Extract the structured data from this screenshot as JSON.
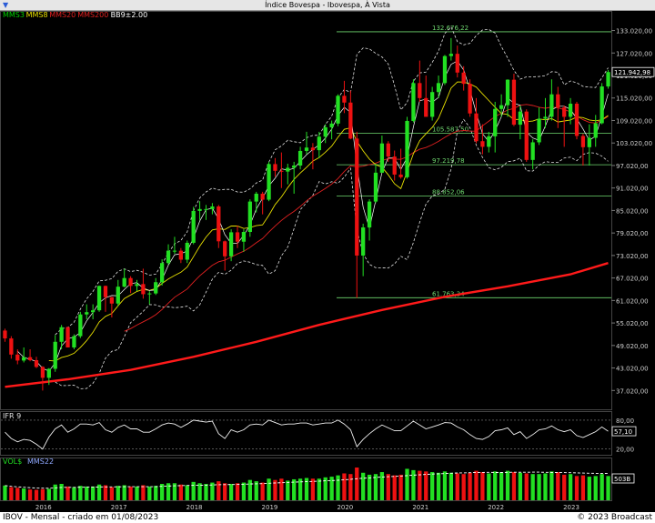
{
  "window": {
    "title": "Índice Bovespa - Ibovespa, À Vista",
    "menu_icon": "chevron-down-icon"
  },
  "legend": {
    "mms3": "MMS3",
    "mms8": "MMS8",
    "mms20": "MMS20",
    "mms200": "MMS200",
    "bb": "BB9±2.00"
  },
  "colors": {
    "mms3": "#00d000",
    "mms8": "#e8e000",
    "mms20": "#e02020",
    "mms200": "#ff1a1a",
    "bull": "#22e022",
    "bear": "#ee1111",
    "fib": "#6fd86f"
  },
  "ifr_panel": {
    "label": "IFR 9",
    "levels": [
      "80,00",
      "20,00"
    ],
    "value_box": "57,10"
  },
  "vol_panel": {
    "label": "VOL$",
    "avg_label": "MMS22",
    "value_box": "503B"
  },
  "footer": {
    "left": "IBOV - Mensal - criado em 01/08/2023",
    "right": "© 2023 Broadcast"
  },
  "chart_data": {
    "type": "candlestick",
    "title": "Índice Bovespa - Ibovespa, À Vista",
    "x": [
      "2015-07",
      "2015-08",
      "2015-09",
      "2015-10",
      "2015-11",
      "2015-12",
      "2016-01",
      "2016-02",
      "2016-03",
      "2016-04",
      "2016-05",
      "2016-06",
      "2016-07",
      "2016-08",
      "2016-09",
      "2016-10",
      "2016-11",
      "2016-12",
      "2017-01",
      "2017-02",
      "2017-03",
      "2017-04",
      "2017-05",
      "2017-06",
      "2017-07",
      "2017-08",
      "2017-09",
      "2017-10",
      "2017-11",
      "2017-12",
      "2018-01",
      "2018-02",
      "2018-03",
      "2018-04",
      "2018-05",
      "2018-06",
      "2018-07",
      "2018-08",
      "2018-09",
      "2018-10",
      "2018-11",
      "2018-12",
      "2019-01",
      "2019-02",
      "2019-03",
      "2019-04",
      "2019-05",
      "2019-06",
      "2019-07",
      "2019-08",
      "2019-09",
      "2019-10",
      "2019-11",
      "2019-12",
      "2020-01",
      "2020-02",
      "2020-03",
      "2020-04",
      "2020-05",
      "2020-06",
      "2020-07",
      "2020-08",
      "2020-09",
      "2020-10",
      "2020-11",
      "2020-12",
      "2021-01",
      "2021-02",
      "2021-03",
      "2021-04",
      "2021-05",
      "2021-06",
      "2021-07",
      "2021-08",
      "2021-09",
      "2021-10",
      "2021-11",
      "2021-12",
      "2022-01",
      "2022-02",
      "2022-03",
      "2022-04",
      "2022-05",
      "2022-06",
      "2022-07",
      "2022-08",
      "2022-09",
      "2022-10",
      "2022-11",
      "2022-12",
      "2023-01",
      "2023-02",
      "2023-03",
      "2023-04",
      "2023-05",
      "2023-06",
      "2023-07"
    ],
    "ohlc": [
      [
        53000,
        53500,
        50000,
        50900
      ],
      [
        50900,
        51500,
        45500,
        46600
      ],
      [
        46600,
        48000,
        44000,
        45000
      ],
      [
        45000,
        48500,
        44500,
        45900
      ],
      [
        45900,
        48000,
        44800,
        45100
      ],
      [
        45100,
        46000,
        43000,
        43300
      ],
      [
        43300,
        43500,
        37000,
        40400
      ],
      [
        40400,
        43000,
        38500,
        42800
      ],
      [
        42800,
        51800,
        42000,
        50000
      ],
      [
        50000,
        54500,
        48000,
        53900
      ],
      [
        53900,
        54000,
        48500,
        48500
      ],
      [
        48500,
        52000,
        48000,
        51500
      ],
      [
        51500,
        58000,
        51000,
        57300
      ],
      [
        57300,
        60000,
        56000,
        57900
      ],
      [
        57900,
        60000,
        56000,
        58400
      ],
      [
        58400,
        65000,
        58000,
        64900
      ],
      [
        64900,
        65000,
        58000,
        61900
      ],
      [
        61900,
        62000,
        56500,
        60200
      ],
      [
        60200,
        66500,
        59500,
        64700
      ],
      [
        64700,
        69500,
        64500,
        67000
      ],
      [
        67000,
        67500,
        63000,
        64900
      ],
      [
        64900,
        66500,
        63500,
        65400
      ],
      [
        65400,
        69500,
        61500,
        62700
      ],
      [
        62700,
        63500,
        60000,
        62900
      ],
      [
        62900,
        67000,
        62500,
        65900
      ],
      [
        65900,
        72000,
        65000,
        71000
      ],
      [
        71000,
        76000,
        70500,
        74300
      ],
      [
        74300,
        78000,
        73500,
        74300
      ],
      [
        74300,
        75000,
        71000,
        71900
      ],
      [
        71900,
        77000,
        71000,
        76400
      ],
      [
        76400,
        86000,
        76000,
        84900
      ],
      [
        84900,
        87500,
        82500,
        85400
      ],
      [
        85400,
        86500,
        82500,
        85400
      ],
      [
        85400,
        87000,
        84000,
        86100
      ],
      [
        86100,
        86500,
        75000,
        76800
      ],
      [
        76800,
        77000,
        69000,
        72800
      ],
      [
        72800,
        80000,
        71500,
        79200
      ],
      [
        79200,
        81000,
        75000,
        76700
      ],
      [
        76700,
        80000,
        74000,
        79300
      ],
      [
        79300,
        88000,
        78000,
        87400
      ],
      [
        87400,
        90000,
        84500,
        89500
      ],
      [
        89500,
        90000,
        84000,
        87900
      ],
      [
        87900,
        98000,
        87500,
        97400
      ],
      [
        97400,
        99000,
        94000,
        95600
      ],
      [
        95600,
        100500,
        91000,
        95400
      ],
      [
        95400,
        97500,
        92000,
        96400
      ],
      [
        96400,
        98000,
        89500,
        97000
      ],
      [
        97000,
        102000,
        96000,
        100900
      ],
      [
        100900,
        106000,
        100000,
        101800
      ],
      [
        101800,
        103000,
        96000,
        101100
      ],
      [
        101100,
        106000,
        99000,
        104700
      ],
      [
        104700,
        108000,
        103000,
        107200
      ],
      [
        107200,
        109000,
        104000,
        108200
      ],
      [
        108200,
        116000,
        107500,
        115600
      ],
      [
        115600,
        119600,
        111000,
        113800
      ],
      [
        113800,
        117000,
        104000,
        104200
      ],
      [
        104200,
        106000,
        61700,
        73000
      ],
      [
        73000,
        81500,
        67500,
        80500
      ],
      [
        80500,
        88000,
        77000,
        87400
      ],
      [
        87400,
        97500,
        87000,
        95100
      ],
      [
        95100,
        105000,
        95000,
        102900
      ],
      [
        102900,
        103500,
        98000,
        99400
      ],
      [
        99400,
        101000,
        93000,
        94600
      ],
      [
        94600,
        101500,
        93500,
        93900
      ],
      [
        93900,
        110000,
        93500,
        108900
      ],
      [
        108900,
        120000,
        108500,
        119000
      ],
      [
        119000,
        125000,
        114000,
        115000
      ],
      [
        115000,
        121000,
        110000,
        110000
      ],
      [
        110000,
        118000,
        109000,
        116600
      ],
      [
        116600,
        121000,
        115000,
        119000
      ],
      [
        119000,
        126500,
        118500,
        126200
      ],
      [
        126200,
        131000,
        125000,
        126800
      ],
      [
        126800,
        129000,
        120500,
        121800
      ],
      [
        121800,
        123500,
        117000,
        118800
      ],
      [
        118800,
        120000,
        110000,
        110900
      ],
      [
        110900,
        115000,
        103000,
        103500
      ],
      [
        103500,
        108000,
        100000,
        102000
      ],
      [
        102000,
        106000,
        100500,
        104800
      ],
      [
        104800,
        114000,
        100500,
        112100
      ],
      [
        112100,
        116000,
        110000,
        113100
      ],
      [
        113100,
        120000,
        110000,
        119900
      ],
      [
        119900,
        121500,
        107500,
        107900
      ],
      [
        107900,
        113000,
        104000,
        111400
      ],
      [
        111400,
        112000,
        98000,
        98500
      ],
      [
        98500,
        104000,
        96000,
        103200
      ],
      [
        103200,
        112500,
        102500,
        109500
      ],
      [
        109500,
        115000,
        107000,
        110000
      ],
      [
        110000,
        120000,
        109000,
        116000
      ],
      [
        116000,
        118000,
        107000,
        112500
      ],
      [
        112500,
        113000,
        102000,
        110000
      ],
      [
        110000,
        115000,
        108000,
        113500
      ],
      [
        113500,
        114000,
        104000,
        104900
      ],
      [
        104900,
        105500,
        97000,
        101900
      ],
      [
        101900,
        108000,
        97000,
        104400
      ],
      [
        104400,
        110500,
        102000,
        108300
      ],
      [
        108300,
        119000,
        108000,
        118100
      ],
      [
        118100,
        122500,
        117500,
        121943
      ]
    ],
    "mms200": [
      [
        0,
        38000
      ],
      [
        10,
        40000
      ],
      [
        20,
        42500
      ],
      [
        30,
        46000
      ],
      [
        40,
        50000
      ],
      [
        50,
        54500
      ],
      [
        60,
        58500
      ],
      [
        70,
        62000
      ],
      [
        80,
        64800
      ],
      [
        90,
        68000
      ],
      [
        96,
        71000
      ]
    ],
    "fibonacci": [
      {
        "label": "132.676,22",
        "value": 132676.22
      },
      {
        "label": "105.587,50",
        "value": 105587.5
      },
      {
        "label": "97.219,78",
        "value": 97219.78
      },
      {
        "label": "88.852,06",
        "value": 88852.06
      },
      {
        "label": "61.763,34",
        "value": 61763.34
      }
    ],
    "last_price_label": "121.942,98",
    "y_ticks": [
      "133.020,00",
      "127.020,00",
      "121.020,00",
      "115.020,00",
      "109.020,00",
      "103.020,00",
      "97.020,00",
      "91.020,00",
      "85.020,00",
      "79.020,00",
      "73.020,00",
      "67.020,00",
      "61.020,00",
      "55.020,00",
      "49.020,00",
      "43.020,00",
      "37.020,00"
    ],
    "y_tick_values": [
      133020,
      127020,
      121020,
      115020,
      109020,
      103020,
      97020,
      91020,
      85020,
      79020,
      73020,
      67020,
      61020,
      55020,
      49020,
      43020,
      37020
    ],
    "ylim": [
      32000,
      138000
    ],
    "year_labels": [
      {
        "label": "2016",
        "index": 6
      },
      {
        "label": "2017",
        "index": 18
      },
      {
        "label": "2018",
        "index": 30
      },
      {
        "label": "2019",
        "index": 42
      },
      {
        "label": "2020",
        "index": 54
      },
      {
        "label": "2021",
        "index": 66
      },
      {
        "label": "2022",
        "index": 78
      },
      {
        "label": "2023",
        "index": 90
      }
    ],
    "ifr9": [
      55,
      42,
      35,
      40,
      38,
      30,
      20,
      45,
      62,
      70,
      55,
      62,
      72,
      72,
      70,
      75,
      60,
      55,
      65,
      70,
      62,
      62,
      55,
      55,
      62,
      70,
      74,
      72,
      65,
      72,
      80,
      78,
      76,
      78,
      52,
      42,
      60,
      55,
      60,
      70,
      72,
      70,
      80,
      75,
      70,
      72,
      72,
      74,
      74,
      70,
      72,
      74,
      74,
      80,
      72,
      60,
      25,
      40,
      52,
      62,
      70,
      64,
      58,
      58,
      68,
      78,
      70,
      62,
      66,
      70,
      75,
      74,
      66,
      60,
      50,
      42,
      40,
      46,
      58,
      60,
      64,
      50,
      56,
      42,
      50,
      60,
      62,
      68,
      60,
      56,
      60,
      48,
      44,
      50,
      56,
      66,
      57.1
    ],
    "ifr_ylim": [
      10,
      95
    ],
    "volume": [
      [
        1,
        0.45
      ],
      [
        0,
        0.4
      ],
      [
        0,
        0.38
      ],
      [
        1,
        0.36
      ],
      [
        0,
        0.33
      ],
      [
        0,
        0.32
      ],
      [
        0,
        0.34
      ],
      [
        1,
        0.35
      ],
      [
        1,
        0.48
      ],
      [
        1,
        0.5
      ],
      [
        0,
        0.42
      ],
      [
        1,
        0.4
      ],
      [
        1,
        0.44
      ],
      [
        1,
        0.42
      ],
      [
        1,
        0.42
      ],
      [
        1,
        0.48
      ],
      [
        0,
        0.46
      ],
      [
        0,
        0.4
      ],
      [
        1,
        0.44
      ],
      [
        1,
        0.46
      ],
      [
        0,
        0.42
      ],
      [
        1,
        0.42
      ],
      [
        0,
        0.46
      ],
      [
        1,
        0.42
      ],
      [
        1,
        0.44
      ],
      [
        1,
        0.5
      ],
      [
        1,
        0.52
      ],
      [
        1,
        0.52
      ],
      [
        0,
        0.48
      ],
      [
        1,
        0.46
      ],
      [
        1,
        0.56
      ],
      [
        1,
        0.52
      ],
      [
        1,
        0.5
      ],
      [
        1,
        0.54
      ],
      [
        0,
        0.58
      ],
      [
        0,
        0.52
      ],
      [
        1,
        0.5
      ],
      [
        0,
        0.52
      ],
      [
        1,
        0.54
      ],
      [
        1,
        0.62
      ],
      [
        1,
        0.58
      ],
      [
        0,
        0.54
      ],
      [
        1,
        0.66
      ],
      [
        0,
        0.62
      ],
      [
        0,
        0.66
      ],
      [
        1,
        0.6
      ],
      [
        1,
        0.64
      ],
      [
        1,
        0.66
      ],
      [
        1,
        0.68
      ],
      [
        0,
        0.66
      ],
      [
        1,
        0.66
      ],
      [
        1,
        0.7
      ],
      [
        1,
        0.72
      ],
      [
        1,
        0.76
      ],
      [
        0,
        0.82
      ],
      [
        0,
        0.8
      ],
      [
        0,
        1.0
      ],
      [
        1,
        0.84
      ],
      [
        1,
        0.78
      ],
      [
        1,
        0.8
      ],
      [
        1,
        0.86
      ],
      [
        0,
        0.8
      ],
      [
        0,
        0.76
      ],
      [
        0,
        0.78
      ],
      [
        1,
        0.96
      ],
      [
        1,
        0.92
      ],
      [
        0,
        0.9
      ],
      [
        0,
        0.88
      ],
      [
        1,
        0.86
      ],
      [
        1,
        0.84
      ],
      [
        1,
        0.88
      ],
      [
        1,
        0.84
      ],
      [
        0,
        0.82
      ],
      [
        0,
        0.8
      ],
      [
        0,
        0.84
      ],
      [
        0,
        0.9
      ],
      [
        0,
        0.86
      ],
      [
        1,
        0.82
      ],
      [
        1,
        0.88
      ],
      [
        1,
        0.86
      ],
      [
        1,
        0.9
      ],
      [
        0,
        0.86
      ],
      [
        1,
        0.84
      ],
      [
        0,
        0.82
      ],
      [
        1,
        0.8
      ],
      [
        1,
        0.8
      ],
      [
        1,
        0.82
      ],
      [
        1,
        0.88
      ],
      [
        0,
        0.86
      ],
      [
        0,
        0.78
      ],
      [
        1,
        0.8
      ],
      [
        0,
        0.74
      ],
      [
        0,
        0.76
      ],
      [
        1,
        0.72
      ],
      [
        1,
        0.74
      ],
      [
        1,
        0.8
      ],
      [
        1,
        0.74
      ]
    ]
  }
}
